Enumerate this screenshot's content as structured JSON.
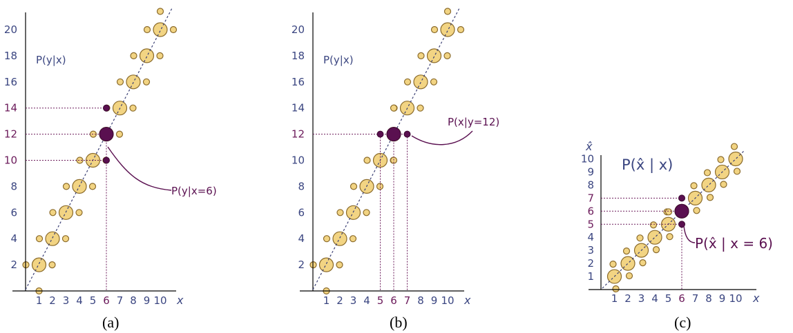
{
  "panels": [
    {
      "caption": "(a)",
      "title": "P(y|x)",
      "xlabel": "x",
      "x_ticks": [
        "1",
        "2",
        "3",
        "4",
        "5",
        "6",
        "7",
        "8",
        "9",
        "10"
      ],
      "y_ticks": [
        "2",
        "4",
        "6",
        "8",
        "10",
        "12",
        "14",
        "16",
        "18",
        "20"
      ],
      "annotation": "P(y|x=6)",
      "highlight": {
        "x": 6,
        "y": [
          10,
          12,
          14
        ]
      }
    },
    {
      "caption": "(b)",
      "title": "P(y|x)",
      "xlabel": "x",
      "x_ticks": [
        "1",
        "2",
        "3",
        "4",
        "5",
        "6",
        "7",
        "8",
        "9",
        "10"
      ],
      "y_ticks": [
        "2",
        "4",
        "6",
        "8",
        "10",
        "12",
        "14",
        "16",
        "18",
        "20"
      ],
      "annotation": "P(x|y=12)",
      "highlight": {
        "x": [
          5,
          6,
          7
        ],
        "y": 12
      }
    },
    {
      "caption": "(c)",
      "title": "P(x̂ | x)",
      "xlabel": "x",
      "ylabel": "x̂",
      "x_ticks": [
        "1",
        "2",
        "3",
        "4",
        "5",
        "6",
        "7",
        "8",
        "9",
        "10"
      ],
      "y_ticks": [
        "1",
        "2",
        "3",
        "4",
        "5",
        "6",
        "7",
        "8",
        "9",
        "10"
      ],
      "annotation": "P(x̂ | x = 6)",
      "highlight": {
        "x": 6,
        "y": [
          5,
          6,
          7
        ]
      }
    }
  ],
  "colors": {
    "bubble": "#f2d483",
    "highlight": "#5a1050",
    "axis_text": "#3a4580"
  }
}
